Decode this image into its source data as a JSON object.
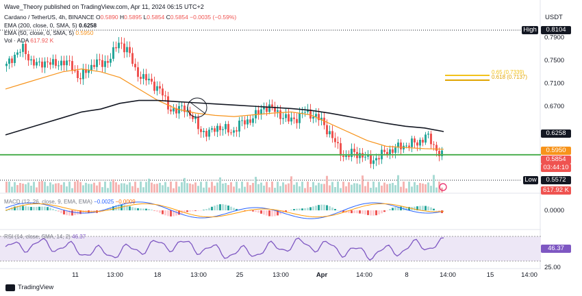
{
  "publisher": "Wave_Theory published on TradingView.com, Apr 11, 2024 06:15 UTC+2",
  "symbol": "Cardano / TetherUS, 4h, BINANCE",
  "ohlc": {
    "o_label": "O",
    "o": "0.5890",
    "h_label": "H",
    "h": "0.5895",
    "l_label": "L",
    "l": "0.5854",
    "c_label": "C",
    "c": "0.5854",
    "chg": "−0.0035 (−0.59%)"
  },
  "ema200": {
    "label": "EMA (200, close, 0, SMA, 5)",
    "value": "0.6258"
  },
  "ema50": {
    "label": "EMA (50, close, 0, SMA, 5)",
    "value": "0.5950"
  },
  "vol": {
    "label": "Vol · ADA",
    "value": "617.92 K"
  },
  "currency": "USDT",
  "price_axis": {
    "ticks": [
      "0.7900",
      "0.7500",
      "0.7100",
      "0.6700"
    ],
    "bottom_ticks": [
      "0.0000",
      "25.00"
    ]
  },
  "tags": {
    "high_label": "High",
    "high_value": "0.8104",
    "ema200": "0.6258",
    "ema50": "0.5950",
    "last": "0.5854",
    "countdown": "03:44:10",
    "low_label": "Low",
    "low_value": "0.5572",
    "volume": "617.92 K",
    "rsi": "46.37"
  },
  "fib": {
    "upper": "0.65 (0.7339)",
    "lower": "0.618 (0.7137)"
  },
  "macd": {
    "label": "MACD (12, 26, close, 9, EMA, EMA)",
    "v1": "−0.0025",
    "v2": "−0.0009"
  },
  "rsi": {
    "label": "RSI (14, close, SMA, 14, 2)",
    "value": "46.37"
  },
  "time_axis": [
    "11",
    "13:00",
    "18",
    "13:00",
    "25",
    "13:00",
    "Apr",
    "14:00",
    "8",
    "14:00",
    "15",
    "14:00"
  ],
  "brand": "TradingView",
  "colors": {
    "up": "#26a69a",
    "down": "#ef5350",
    "ema200": "#131722",
    "ema50": "#f7931a",
    "support": "#4caf50",
    "fib": "#f2c21a",
    "rsi": "#7e57c2",
    "macd": "#2962ff",
    "signal": "#ff9800"
  },
  "chart_data": {
    "type": "candlestick",
    "timeframe": "4h",
    "close_path": [
      0.74,
      0.76,
      0.77,
      0.75,
      0.74,
      0.75,
      0.74,
      0.75,
      0.74,
      0.72,
      0.73,
      0.75,
      0.74,
      0.76,
      0.78,
      0.77,
      0.73,
      0.72,
      0.71,
      0.7,
      0.67,
      0.66,
      0.67,
      0.65,
      0.63,
      0.62,
      0.635,
      0.63,
      0.625,
      0.64,
      0.645,
      0.655,
      0.67,
      0.665,
      0.655,
      0.645,
      0.65,
      0.66,
      0.655,
      0.645,
      0.625,
      0.6,
      0.58,
      0.59,
      0.585,
      0.575,
      0.58,
      0.59,
      0.595,
      0.6,
      0.605,
      0.605,
      0.62,
      0.6,
      0.585
    ],
    "ema200_path": [
      0.62,
      0.63,
      0.64,
      0.65,
      0.66,
      0.665,
      0.675,
      0.68,
      0.68,
      0.678,
      0.676,
      0.674,
      0.672,
      0.67,
      0.668,
      0.666,
      0.663,
      0.658,
      0.652,
      0.646,
      0.64,
      0.635,
      0.632,
      0.6258
    ],
    "ema50_path": [
      0.7,
      0.71,
      0.72,
      0.73,
      0.735,
      0.73,
      0.72,
      0.7,
      0.68,
      0.665,
      0.658,
      0.654,
      0.652,
      0.655,
      0.658,
      0.66,
      0.655,
      0.64,
      0.625,
      0.61,
      0.6,
      0.598,
      0.596,
      0.595
    ],
    "support": 0.5854,
    "high": 0.8104,
    "low": 0.5572
  }
}
